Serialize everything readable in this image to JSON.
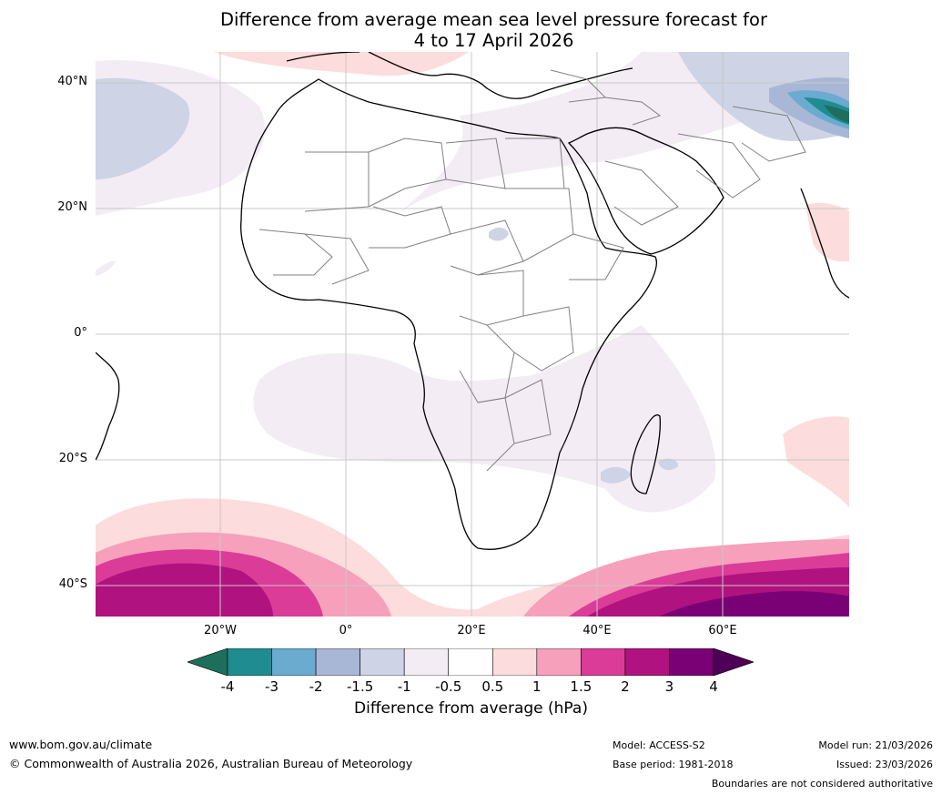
{
  "title_line1": "Difference from average mean sea level pressure forecast for",
  "title_line2": "4 to 17 April 2026",
  "lat_labels": [
    "40°N",
    "20°N",
    "0°",
    "20°S",
    "40°S"
  ],
  "lon_labels": [
    "20°W",
    "0°",
    "20°E",
    "40°E",
    "60°E"
  ],
  "colorbar": {
    "ticks": [
      "-4",
      "-3",
      "-2",
      "-1.5",
      "-1",
      "-0.5",
      "0.5",
      "1",
      "1.5",
      "2",
      "3",
      "4"
    ],
    "colors": [
      "#1e6e5c",
      "#1f8c92",
      "#6aabcf",
      "#a8b7d6",
      "#ced3e6",
      "#f3ecf5",
      "#ffffff",
      "#fcdcdc",
      "#f6a0bb",
      "#da3c98",
      "#b0127f",
      "#7a0076",
      "#4d0056"
    ],
    "label": "Difference from average (hPa)"
  },
  "footer": {
    "url": "www.bom.gov.au/climate",
    "copyright": "© Commonwealth of Australia 2026, Australian Bureau of Meteorology",
    "model": "Model: ACCESS-S2",
    "base_period": "Base period: 1981-2018",
    "model_run": "Model run: 21/03/2026",
    "issued": "Issued: 23/03/2026",
    "disclaimer": "Boundaries are not considered authoritative"
  }
}
